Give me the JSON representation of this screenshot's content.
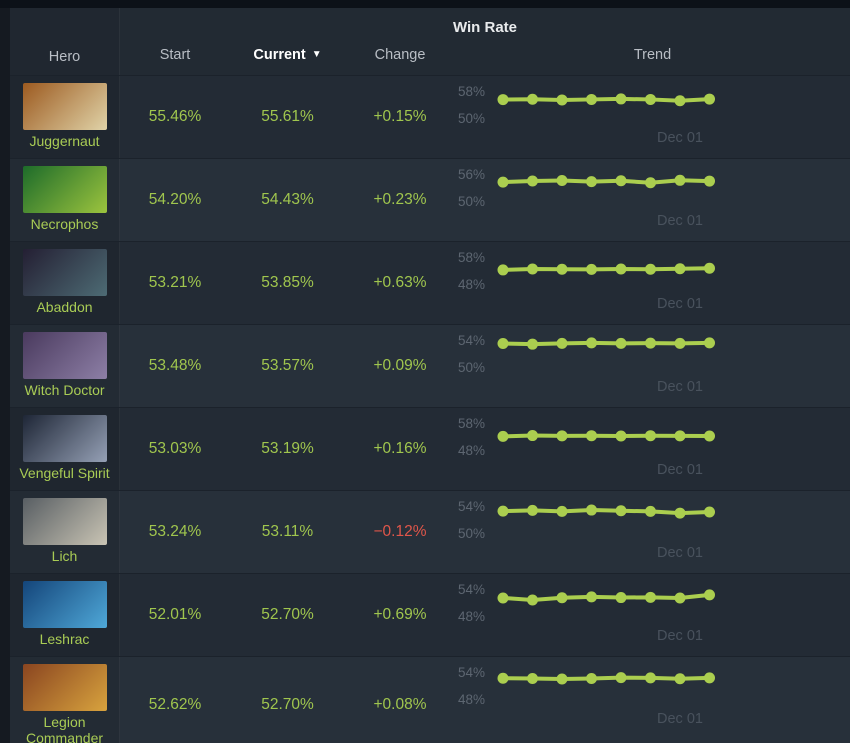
{
  "theme": {
    "page_bg": "#151a21",
    "table_bg": "#232b35",
    "row_alt_bg": "#27303a",
    "accent_green": "#a0c64e",
    "negative_red": "#e0564a",
    "spark_line": "#abce4f",
    "axis_label_color": "#5d6671",
    "tick_label_color": "#49525d",
    "header_text": "#b9bec5"
  },
  "header": {
    "group_title": "Win Rate",
    "columns": {
      "hero": "Hero",
      "start": "Start",
      "current": "Current",
      "change": "Change",
      "trend": "Trend"
    },
    "sort_icon": "▼",
    "sorted_by": "Current"
  },
  "rows": [
    {
      "hero": "Juggernaut",
      "start": "55.46%",
      "current": "55.61%",
      "change": "+0.15%",
      "direction": "up",
      "portrait": [
        "#9c5a20",
        "#e0d3a8"
      ]
    },
    {
      "hero": "Necrophos",
      "start": "54.20%",
      "current": "54.43%",
      "change": "+0.23%",
      "direction": "up",
      "portrait": [
        "#1d6b2a",
        "#9cc43e"
      ]
    },
    {
      "hero": "Abaddon",
      "start": "53.21%",
      "current": "53.85%",
      "change": "+0.63%",
      "direction": "up",
      "portrait": [
        "#241f33",
        "#4d6b74"
      ]
    },
    {
      "hero": "Witch Doctor",
      "start": "53.48%",
      "current": "53.57%",
      "change": "+0.09%",
      "direction": "up",
      "portrait": [
        "#4a3a5e",
        "#8d7fa6"
      ]
    },
    {
      "hero": "Vengeful Spirit",
      "start": "53.03%",
      "current": "53.19%",
      "change": "+0.16%",
      "direction": "up",
      "portrait": [
        "#1e2636",
        "#95a0b5"
      ]
    },
    {
      "hero": "Lich",
      "start": "53.24%",
      "current": "53.11%",
      "change": "−0.12%",
      "direction": "down",
      "portrait": [
        "#585e63",
        "#c9c4b4"
      ]
    },
    {
      "hero": "Leshrac",
      "start": "52.01%",
      "current": "52.70%",
      "change": "+0.69%",
      "direction": "up",
      "portrait": [
        "#14457a",
        "#4fa8d8"
      ]
    },
    {
      "hero": "Legion Commander",
      "start": "52.62%",
      "current": "52.70%",
      "change": "+0.08%",
      "direction": "up",
      "portrait": [
        "#8a4520",
        "#d8a33e"
      ]
    }
  ],
  "chart_data": [
    {
      "type": "line",
      "hero": "Juggernaut",
      "ylim": [
        50,
        58
      ],
      "y_tick_labels": [
        "58%",
        "50%"
      ],
      "x_tick_label": "Dec 01",
      "x_tick_index": 6,
      "values": [
        55.46,
        55.55,
        55.35,
        55.5,
        55.65,
        55.5,
        55.1,
        55.61
      ]
    },
    {
      "type": "line",
      "hero": "Necrophos",
      "ylim": [
        50,
        56
      ],
      "y_tick_labels": [
        "56%",
        "50%"
      ],
      "x_tick_label": "Dec 01",
      "x_tick_index": 6,
      "values": [
        54.2,
        54.45,
        54.55,
        54.3,
        54.5,
        54.05,
        54.6,
        54.43
      ]
    },
    {
      "type": "line",
      "hero": "Abaddon",
      "ylim": [
        48,
        58
      ],
      "y_tick_labels": [
        "58%",
        "48%"
      ],
      "x_tick_label": "Dec 01",
      "x_tick_index": 6,
      "values": [
        53.21,
        53.55,
        53.45,
        53.4,
        53.55,
        53.45,
        53.65,
        53.85
      ]
    },
    {
      "type": "line",
      "hero": "Witch Doctor",
      "ylim": [
        50,
        54
      ],
      "y_tick_labels": [
        "54%",
        "50%"
      ],
      "x_tick_label": "Dec 01",
      "x_tick_index": 6,
      "values": [
        53.48,
        53.38,
        53.5,
        53.58,
        53.5,
        53.54,
        53.5,
        53.57
      ]
    },
    {
      "type": "line",
      "hero": "Vengeful Spirit",
      "ylim": [
        48,
        58
      ],
      "y_tick_labels": [
        "58%",
        "48%"
      ],
      "x_tick_label": "Dec 01",
      "x_tick_index": 6,
      "values": [
        53.03,
        53.35,
        53.25,
        53.3,
        53.2,
        53.3,
        53.25,
        53.19
      ]
    },
    {
      "type": "line",
      "hero": "Lich",
      "ylim": [
        50,
        54
      ],
      "y_tick_labels": [
        "54%",
        "50%"
      ],
      "x_tick_label": "Dec 01",
      "x_tick_index": 6,
      "values": [
        53.24,
        53.35,
        53.2,
        53.4,
        53.3,
        53.2,
        52.95,
        53.11
      ]
    },
    {
      "type": "line",
      "hero": "Leshrac",
      "ylim": [
        48,
        54
      ],
      "y_tick_labels": [
        "54%",
        "48%"
      ],
      "x_tick_label": "Dec 01",
      "x_tick_index": 6,
      "values": [
        52.01,
        51.55,
        52.05,
        52.25,
        52.1,
        52.15,
        52.0,
        52.7
      ]
    },
    {
      "type": "line",
      "hero": "Legion Commander",
      "ylim": [
        48,
        54
      ],
      "y_tick_labels": [
        "54%",
        "48%"
      ],
      "x_tick_label": "Dec 01",
      "x_tick_index": 6,
      "values": [
        52.62,
        52.55,
        52.45,
        52.55,
        52.75,
        52.7,
        52.5,
        52.7
      ]
    }
  ]
}
